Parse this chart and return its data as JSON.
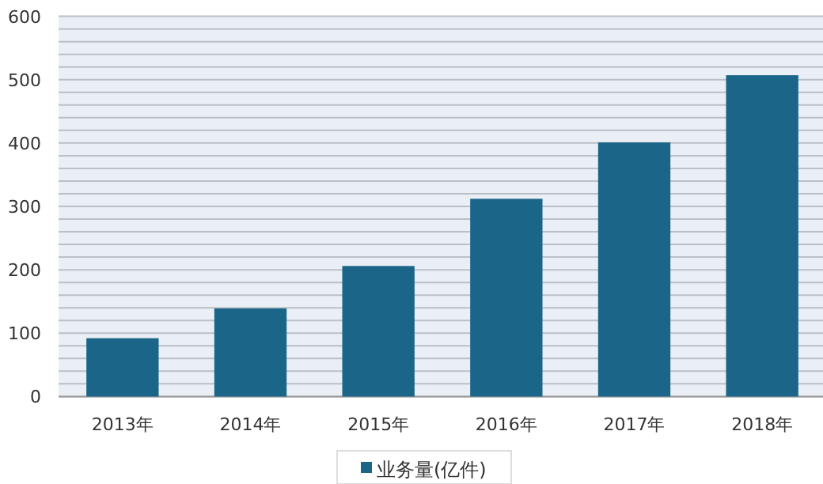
{
  "chart_data": {
    "type": "bar",
    "categories": [
      "2013年",
      "2014年",
      "2015年",
      "2016年",
      "2017年",
      "2018年"
    ],
    "series": [
      {
        "name": "业务量(亿件)",
        "color": "#1b6589",
        "values": [
          92,
          139,
          206,
          312,
          401,
          507
        ]
      }
    ],
    "ylim": [
      0,
      600
    ],
    "yticks": [
      0,
      {
        "value": 20,
        "label": null
      },
      {
        "value": 40,
        "label": null
      },
      {
        "value": 60,
        "label": null
      },
      {
        "value": 80,
        "label": null
      },
      100,
      {
        "value": 120,
        "label": null
      },
      {
        "value": 140,
        "label": null
      },
      {
        "value": 160,
        "label": null
      },
      {
        "value": 180,
        "label": null
      },
      200,
      {
        "value": 220,
        "label": null
      },
      {
        "value": 240,
        "label": null
      },
      {
        "value": 260,
        "label": null
      },
      {
        "value": 280,
        "label": null
      },
      300,
      {
        "value": 320,
        "label": null
      },
      {
        "value": 340,
        "label": null
      },
      {
        "value": 360,
        "label": null
      },
      {
        "value": 380,
        "label": null
      },
      400,
      {
        "value": 420,
        "label": null
      },
      {
        "value": 440,
        "label": null
      },
      {
        "value": 460,
        "label": null
      },
      {
        "value": 480,
        "label": null
      },
      500,
      {
        "value": 520,
        "label": null
      },
      {
        "value": 540,
        "label": null
      },
      {
        "value": 560,
        "label": null
      },
      {
        "value": 580,
        "label": null
      },
      600
    ],
    "grid": "y",
    "legend": "bottom"
  }
}
